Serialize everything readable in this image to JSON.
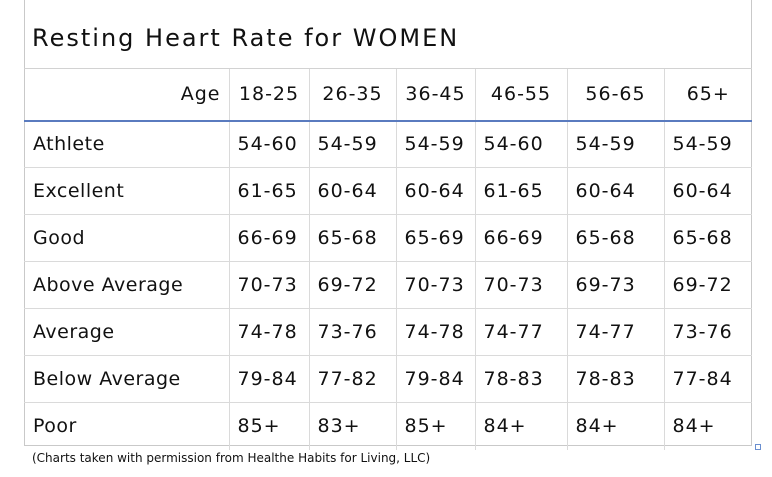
{
  "chart_data": {
    "type": "table",
    "title": "Resting Heart Rate for WOMEN",
    "columns": [
      "Age",
      "18-25",
      "26-35",
      "36-45",
      "46-55",
      "56-65",
      "65+"
    ],
    "rows": [
      {
        "label": "Athlete",
        "values": [
          "54-60",
          "54-59",
          "54-59",
          "54-60",
          "54-59",
          "54-59"
        ]
      },
      {
        "label": "Excellent",
        "values": [
          "61-65",
          "60-64",
          "60-64",
          "61-65",
          "60-64",
          "60-64"
        ]
      },
      {
        "label": "Good",
        "values": [
          "66-69",
          "65-68",
          "65-69",
          "66-69",
          "65-68",
          "65-68"
        ]
      },
      {
        "label": "Above Average",
        "values": [
          "70-73",
          "69-72",
          "70-73",
          "70-73",
          "69-73",
          "69-72"
        ]
      },
      {
        "label": "Average",
        "values": [
          "74-78",
          "73-76",
          "74-78",
          "74-77",
          "74-77",
          "73-76"
        ]
      },
      {
        "label": "Below Average",
        "values": [
          "79-84",
          "77-82",
          "79-84",
          "78-83",
          "78-83",
          "77-84"
        ]
      },
      {
        "label": "Poor",
        "values": [
          "85+",
          "83+",
          "85+",
          "84+",
          "84+",
          "84+"
        ]
      }
    ],
    "footnote": "(Charts taken with permission from Healthe Habits for Living, LLC)"
  },
  "colors": {
    "header_rule": "#5a7bbf",
    "grid": "#dadada",
    "text": "#111111"
  }
}
